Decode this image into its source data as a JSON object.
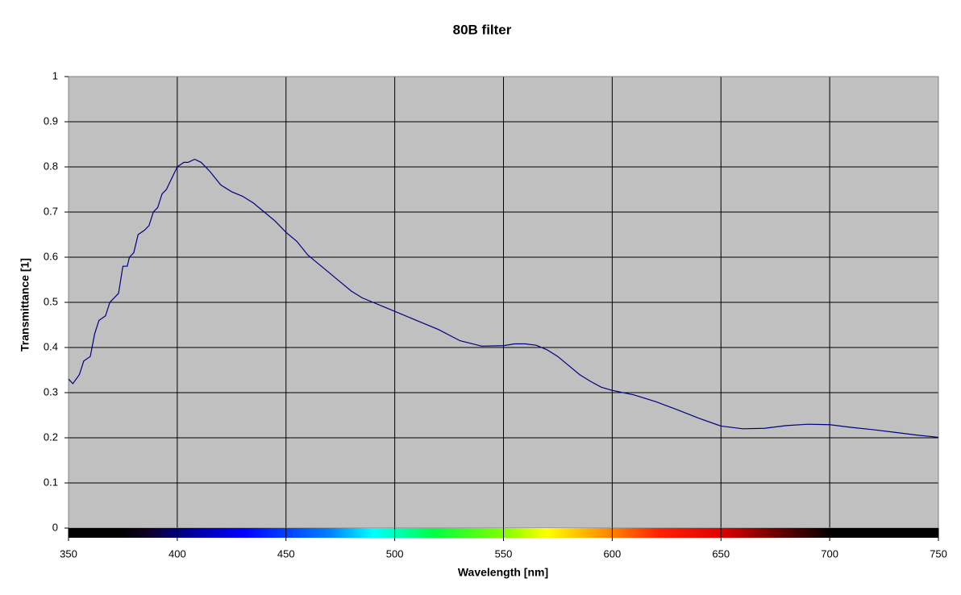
{
  "chart_data": {
    "type": "line",
    "title": "80B filter",
    "x_label": "Wavelength [nm]",
    "y_label": "Transmittance [1]",
    "xlim": [
      350,
      750
    ],
    "ylim": [
      0,
      1
    ],
    "xticks": [
      350,
      400,
      450,
      500,
      550,
      600,
      650,
      700,
      750
    ],
    "yticks": [
      0,
      0.1,
      0.2,
      0.3,
      0.4,
      0.5,
      0.6,
      0.7,
      0.8,
      0.9,
      1
    ],
    "grid": true,
    "series": [
      {
        "name": "80B filter",
        "color": "#000080",
        "x": [
          350,
          352,
          355,
          357,
          360,
          362,
          364,
          367,
          369,
          371,
          373,
          375,
          377,
          378,
          380,
          382,
          385,
          387,
          389,
          391,
          393,
          395,
          397,
          400,
          403,
          405,
          408,
          411,
          415,
          420,
          425,
          430,
          435,
          440,
          445,
          450,
          455,
          460,
          465,
          470,
          475,
          480,
          485,
          490,
          495,
          500,
          510,
          520,
          530,
          540,
          550,
          555,
          560,
          565,
          570,
          575,
          580,
          585,
          590,
          595,
          600,
          610,
          620,
          630,
          640,
          650,
          660,
          670,
          680,
          690,
          700,
          710,
          720,
          730,
          740,
          750
        ],
        "values": [
          0.33,
          0.32,
          0.34,
          0.37,
          0.38,
          0.43,
          0.46,
          0.47,
          0.5,
          0.51,
          0.52,
          0.58,
          0.58,
          0.6,
          0.61,
          0.65,
          0.66,
          0.67,
          0.7,
          0.71,
          0.74,
          0.75,
          0.77,
          0.8,
          0.81,
          0.81,
          0.817,
          0.81,
          0.79,
          0.76,
          0.745,
          0.735,
          0.72,
          0.7,
          0.68,
          0.655,
          0.635,
          0.605,
          0.585,
          0.565,
          0.545,
          0.525,
          0.51,
          0.5,
          0.49,
          0.48,
          0.46,
          0.44,
          0.415,
          0.403,
          0.404,
          0.408,
          0.408,
          0.405,
          0.395,
          0.38,
          0.36,
          0.34,
          0.325,
          0.312,
          0.305,
          0.295,
          0.28,
          0.262,
          0.243,
          0.226,
          0.22,
          0.221,
          0.227,
          0.23,
          0.229,
          0.223,
          0.218,
          0.212,
          0.206,
          0.201
        ]
      }
    ]
  }
}
